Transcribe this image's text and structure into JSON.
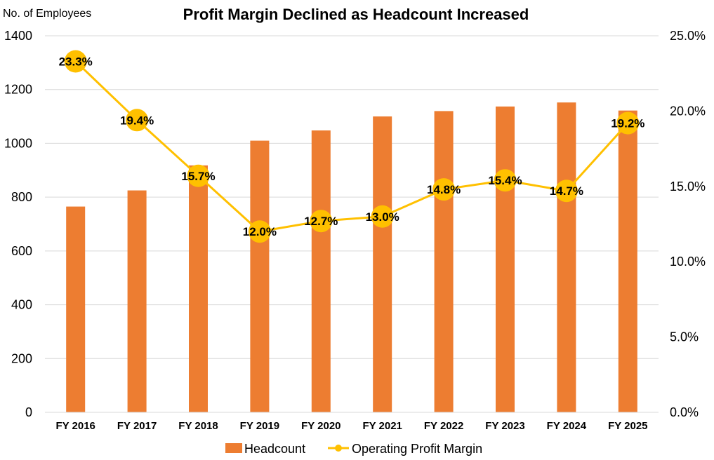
{
  "chart_data": {
    "type": "bar",
    "title": "Profit Margin Declined as Headcount Increased",
    "ylabel": "No. of Employees",
    "ylabel_right": "",
    "categories": [
      "FY 2016",
      "FY 2017",
      "FY 2018",
      "FY 2019",
      "FY 2020",
      "FY 2021",
      "FY 2022",
      "FY 2023",
      "FY 2024",
      "FY 2025"
    ],
    "series": [
      {
        "name": "Headcount",
        "type": "bar",
        "axis": "left",
        "color": "#ed7d31",
        "values": [
          765,
          825,
          918,
          1010,
          1048,
          1100,
          1120,
          1137,
          1152,
          1122
        ]
      },
      {
        "name": "Operating Profit Margin",
        "type": "line",
        "axis": "right",
        "color": "#ffc000",
        "values": [
          23.3,
          19.4,
          15.7,
          12.0,
          12.7,
          13.0,
          14.8,
          15.4,
          14.7,
          19.2
        ],
        "labels": [
          "23.3%",
          "19.4%",
          "15.7%",
          "12.0%",
          "12.7%",
          "13.0%",
          "14.8%",
          "15.4%",
          "14.7%",
          "19.2%"
        ]
      }
    ],
    "ylim": [
      0,
      1400
    ],
    "yticks": [
      "0",
      "200",
      "400",
      "600",
      "800",
      "1000",
      "1200",
      "1400"
    ],
    "ylim_right": [
      0,
      25
    ],
    "yticks_right": [
      "0.0%",
      "5.0%",
      "10.0%",
      "15.0%",
      "20.0%",
      "25.0%"
    ],
    "grid": true,
    "legend_position": "bottom"
  }
}
